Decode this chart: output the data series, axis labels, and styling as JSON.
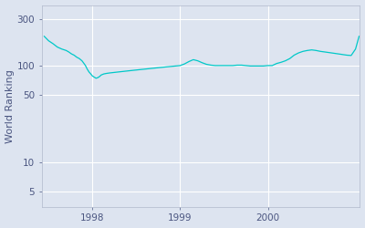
{
  "ylabel": "World Ranking",
  "line_color": "#00c8c8",
  "bg_color": "#dde4f0",
  "fig_bg_color": "#dde4f0",
  "grid_color": "#ffffff",
  "text_color": "#4a5580",
  "yticks": [
    5,
    10,
    50,
    100,
    300
  ],
  "ytick_labels": [
    "5",
    "10",
    "50",
    "100",
    "300"
  ],
  "xlim_start": 1997.42,
  "xlim_end": 2001.05,
  "ylim_bottom": 3.5,
  "ylim_top": 420,
  "xtick_positions": [
    1998,
    1999,
    2000
  ],
  "xtick_labels": [
    "1998",
    "1999",
    "2000"
  ],
  "x_values": [
    1997.45,
    1997.5,
    1997.55,
    1997.6,
    1997.65,
    1997.7,
    1997.73,
    1997.76,
    1997.79,
    1997.82,
    1997.85,
    1997.88,
    1997.9,
    1997.92,
    1997.94,
    1997.96,
    1997.98,
    1998.0,
    1998.02,
    1998.04,
    1998.06,
    1998.08,
    1998.1,
    1998.13,
    1998.16,
    1998.2,
    1998.25,
    1998.3,
    1998.35,
    1998.4,
    1998.45,
    1998.5,
    1998.55,
    1998.6,
    1998.65,
    1998.7,
    1998.75,
    1998.8,
    1998.85,
    1998.9,
    1998.95,
    1999.0,
    1999.05,
    1999.1,
    1999.15,
    1999.2,
    1999.25,
    1999.3,
    1999.35,
    1999.4,
    1999.45,
    1999.5,
    1999.55,
    1999.6,
    1999.65,
    1999.7,
    1999.75,
    1999.8,
    1999.85,
    1999.9,
    1999.95,
    2000.0,
    2000.05,
    2000.1,
    2000.15,
    2000.2,
    2000.25,
    2000.3,
    2000.35,
    2000.4,
    2000.45,
    2000.5,
    2000.55,
    2000.6,
    2000.65,
    2000.7,
    2000.75,
    2000.8,
    2000.85,
    2000.9,
    2000.95,
    2001.0,
    2001.04
  ],
  "y_values": [
    200,
    180,
    168,
    155,
    148,
    143,
    138,
    132,
    128,
    122,
    118,
    112,
    106,
    100,
    92,
    86,
    82,
    78,
    76,
    74,
    75,
    77,
    80,
    82,
    83,
    84,
    85,
    86,
    87,
    88,
    89,
    90,
    91,
    92,
    93,
    94,
    95,
    96,
    97,
    98,
    99,
    100,
    104,
    110,
    115,
    112,
    107,
    103,
    101,
    100,
    100,
    100,
    100,
    100,
    101,
    101,
    100,
    99,
    99,
    99,
    99,
    100,
    100,
    105,
    108,
    112,
    118,
    128,
    135,
    140,
    143,
    145,
    143,
    140,
    138,
    136,
    134,
    132,
    130,
    128,
    127,
    148,
    200
  ]
}
